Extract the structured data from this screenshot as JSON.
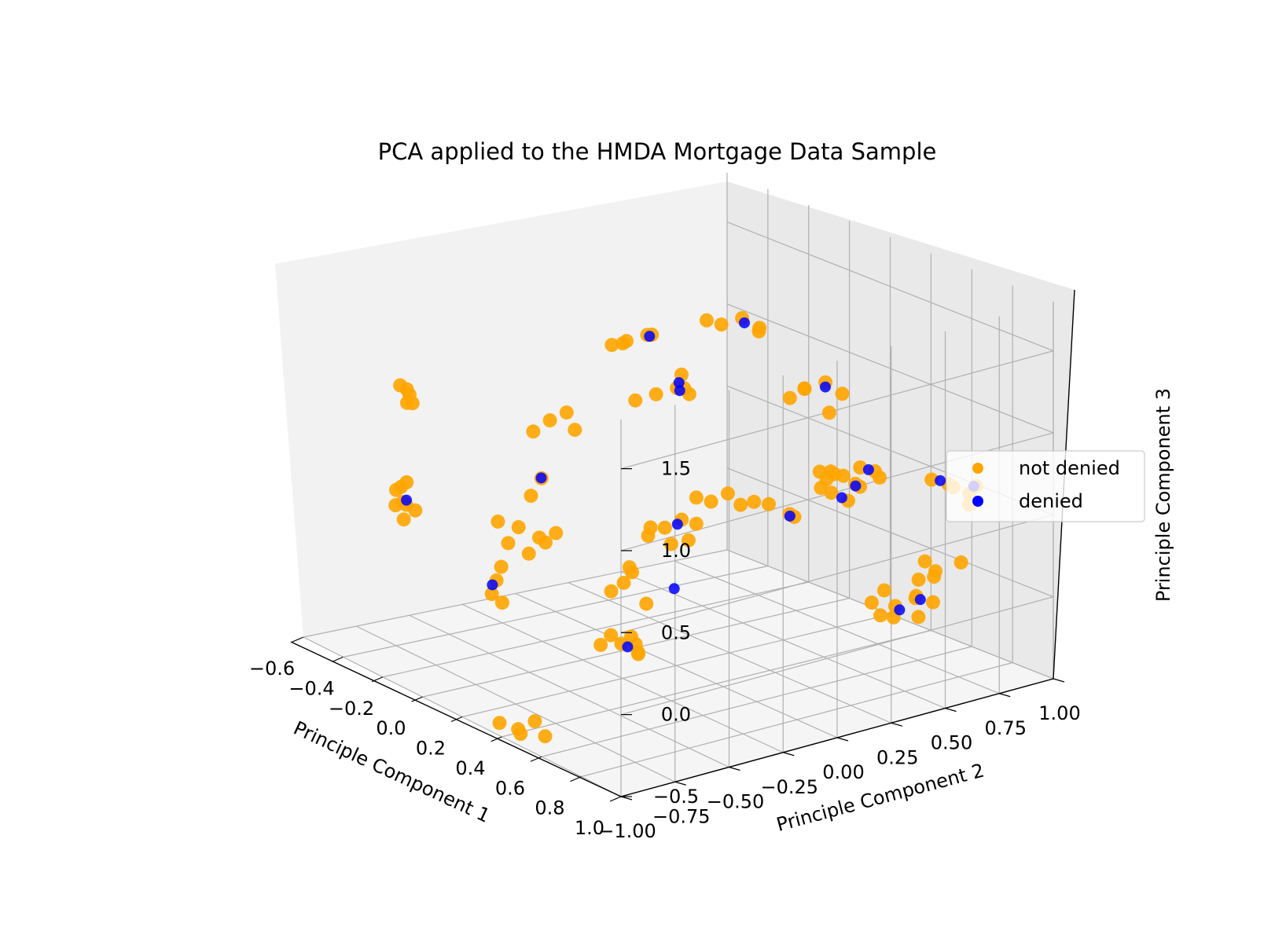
{
  "chart_data": {
    "type": "scatter",
    "projection": "3d",
    "title": "PCA applied to the HMDA Mortgage Data Sample",
    "xlabel": "Principle Component 1",
    "ylabel": "Principle Component 2",
    "zlabel": "Principle Component 3",
    "x_ticks": [
      "−0.6",
      "−0.4",
      "−0.2",
      "0.0",
      "0.2",
      "0.4",
      "0.6",
      "0.8",
      "1.0"
    ],
    "y_ticks": [
      "−1.00",
      "−0.75",
      "−0.50",
      "−0.25",
      "0.00",
      "0.25",
      "0.50",
      "0.75",
      "1.00"
    ],
    "z_ticks": [
      "−0.5",
      "0.0",
      "0.5",
      "1.0",
      "1.5"
    ],
    "grid": true,
    "legend": {
      "placement": "center-right"
    },
    "colors": {
      "not denied": "#ffa500",
      "denied": "#0000ff"
    },
    "series": [
      {
        "name": "not denied",
        "color": "#ffa500",
        "points": [
          [
            0.32,
            -0.85,
            -0.55
          ],
          [
            0.35,
            -0.8,
            -0.5
          ],
          [
            0.28,
            -0.9,
            -0.52
          ],
          [
            0.38,
            -0.78,
            -0.58
          ],
          [
            0.3,
            -0.82,
            -0.6
          ],
          [
            0.3,
            -0.35,
            -0.2
          ],
          [
            0.28,
            -0.38,
            -0.15
          ],
          [
            0.33,
            -0.3,
            -0.25
          ],
          [
            0.35,
            -0.33,
            -0.18
          ],
          [
            0.25,
            -0.4,
            -0.22
          ],
          [
            0.31,
            -0.28,
            -0.28
          ],
          [
            0.36,
            -0.36,
            -0.12
          ],
          [
            0.28,
            -0.32,
            0.15
          ],
          [
            0.3,
            -0.3,
            0.22
          ],
          [
            0.26,
            -0.36,
            0.1
          ],
          [
            0.33,
            -0.34,
            0.28
          ],
          [
            0.35,
            -0.28,
            0.05
          ],
          [
            0.7,
            0.55,
            -0.05
          ],
          [
            0.75,
            0.6,
            0.02
          ],
          [
            0.68,
            0.5,
            -0.1
          ],
          [
            0.72,
            0.48,
            0.08
          ],
          [
            0.78,
            0.65,
            -0.02
          ],
          [
            0.66,
            0.58,
            -0.15
          ],
          [
            0.8,
            0.55,
            0.05
          ],
          [
            0.74,
            0.62,
            -0.12
          ],
          [
            0.69,
            0.45,
            0.0
          ],
          [
            0.55,
            0.8,
            -0.05
          ],
          [
            0.58,
            0.85,
            0.0
          ],
          [
            0.52,
            0.9,
            -0.08
          ],
          [
            0.6,
            0.95,
            0.03
          ],
          [
            0.56,
            0.82,
            0.06
          ],
          [
            0.05,
            -0.7,
            0.15
          ],
          [
            0.08,
            -0.75,
            0.1
          ],
          [
            0.02,
            -0.65,
            0.2
          ],
          [
            0.1,
            -0.72,
            0.05
          ],
          [
            -0.4,
            -0.75,
            0.45
          ],
          [
            -0.35,
            -0.8,
            0.4
          ],
          [
            -0.42,
            -0.7,
            0.35
          ],
          [
            -0.38,
            -0.72,
            0.5
          ],
          [
            -0.33,
            -0.78,
            0.32
          ],
          [
            -0.45,
            -0.68,
            0.42
          ],
          [
            -0.36,
            -0.74,
            0.38
          ],
          [
            -0.4,
            -0.66,
            0.3
          ],
          [
            -0.4,
            -0.7,
            1.05
          ],
          [
            -0.38,
            -0.75,
            1.1
          ],
          [
            -0.42,
            -0.68,
            0.95
          ],
          [
            -0.35,
            -0.72,
            1.0
          ],
          [
            -0.44,
            -0.65,
            0.98
          ],
          [
            0.0,
            -0.55,
            0.4
          ],
          [
            0.05,
            -0.5,
            0.35
          ],
          [
            -0.02,
            -0.58,
            0.3
          ],
          [
            0.08,
            -0.45,
            0.38
          ],
          [
            0.03,
            -0.53,
            0.25
          ],
          [
            -0.05,
            -0.6,
            0.42
          ],
          [
            0.06,
            -0.48,
            0.32
          ],
          [
            0.05,
            -0.45,
            1.05
          ],
          [
            0.08,
            -0.4,
            1.1
          ],
          [
            0.02,
            -0.5,
            0.98
          ],
          [
            0.1,
            -0.38,
            1.0
          ],
          [
            0.04,
            -0.48,
            0.7
          ],
          [
            0.03,
            -0.52,
            0.6
          ],
          [
            0.25,
            -0.1,
            0.4
          ],
          [
            0.28,
            -0.05,
            0.45
          ],
          [
            0.22,
            -0.15,
            0.35
          ],
          [
            0.3,
            0.0,
            0.42
          ],
          [
            0.26,
            -0.08,
            0.3
          ],
          [
            0.2,
            -0.12,
            0.38
          ],
          [
            0.24,
            0.02,
            0.28
          ],
          [
            0.32,
            0.05,
            0.55
          ],
          [
            0.35,
            0.1,
            0.6
          ],
          [
            0.3,
            0.0,
            0.58
          ],
          [
            0.36,
            0.15,
            0.52
          ],
          [
            0.1,
            0.0,
            1.1
          ],
          [
            0.15,
            0.05,
            1.15
          ],
          [
            0.05,
            -0.05,
            1.05
          ],
          [
            0.12,
            0.1,
            1.2
          ],
          [
            0.18,
            0.08,
            1.12
          ],
          [
            0.08,
            0.15,
            1.08
          ],
          [
            -0.1,
            0.05,
            1.3
          ],
          [
            -0.05,
            0.1,
            1.35
          ],
          [
            -0.12,
            0.0,
            1.28
          ],
          [
            -0.08,
            0.15,
            1.32
          ],
          [
            -0.15,
            0.08,
            1.25
          ],
          [
            0.0,
            0.4,
            1.35
          ],
          [
            0.05,
            0.45,
            1.4
          ],
          [
            -0.02,
            0.35,
            1.38
          ],
          [
            0.08,
            0.5,
            1.32
          ],
          [
            0.03,
            0.55,
            1.3
          ],
          [
            0.2,
            0.6,
            1.0
          ],
          [
            0.25,
            0.65,
            1.05
          ],
          [
            0.18,
            0.55,
            0.95
          ],
          [
            0.28,
            0.7,
            0.98
          ],
          [
            0.22,
            0.58,
            1.02
          ],
          [
            0.3,
            0.62,
            0.9
          ],
          [
            0.4,
            0.55,
            0.6
          ],
          [
            0.45,
            0.6,
            0.55
          ],
          [
            0.38,
            0.5,
            0.62
          ],
          [
            0.42,
            0.65,
            0.5
          ],
          [
            0.35,
            0.58,
            0.58
          ],
          [
            0.55,
            0.45,
            0.7
          ],
          [
            0.58,
            0.5,
            0.75
          ],
          [
            0.52,
            0.4,
            0.68
          ],
          [
            0.6,
            0.55,
            0.72
          ],
          [
            0.57,
            0.6,
            0.65
          ],
          [
            0.75,
            0.75,
            0.65
          ],
          [
            0.8,
            0.8,
            0.6
          ],
          [
            0.72,
            0.7,
            0.68
          ],
          [
            0.82,
            0.78,
            0.55
          ],
          [
            0.78,
            0.85,
            0.62
          ],
          [
            0.7,
            0.82,
            0.58
          ],
          [
            0.5,
            0.15,
            0.6
          ],
          [
            0.55,
            0.2,
            0.55
          ],
          [
            0.48,
            0.1,
            0.62
          ],
          [
            0.52,
            0.25,
            0.5
          ],
          [
            0.65,
            0.3,
            0.7
          ],
          [
            0.68,
            0.35,
            0.65
          ],
          [
            0.62,
            0.28,
            0.72
          ]
        ]
      },
      {
        "name": "denied",
        "color": "#0000ff",
        "points": [
          [
            0.31,
            -0.33,
            -0.22
          ],
          [
            0.7,
            0.57,
            -0.08
          ],
          [
            0.76,
            0.61,
            0.0
          ],
          [
            0.04,
            -0.71,
            0.12
          ],
          [
            -0.37,
            -0.73,
            0.4
          ],
          [
            0.06,
            -0.5,
            0.72
          ],
          [
            0.27,
            -0.06,
            0.42
          ],
          [
            0.15,
            0.06,
            1.18
          ],
          [
            0.09,
            0.12,
            1.08
          ],
          [
            -0.06,
            0.12,
            1.33
          ],
          [
            0.04,
            0.47,
            1.36
          ],
          [
            0.26,
            0.64,
            1.03
          ],
          [
            0.43,
            0.62,
            0.52
          ],
          [
            0.6,
            0.52,
            0.74
          ],
          [
            0.72,
            0.74,
            0.66
          ],
          [
            0.79,
            0.83,
            0.63
          ],
          [
            0.53,
            0.22,
            0.52
          ],
          [
            0.67,
            0.33,
            0.67
          ],
          [
            0.35,
            -0.15,
            0.1
          ]
        ]
      }
    ]
  }
}
